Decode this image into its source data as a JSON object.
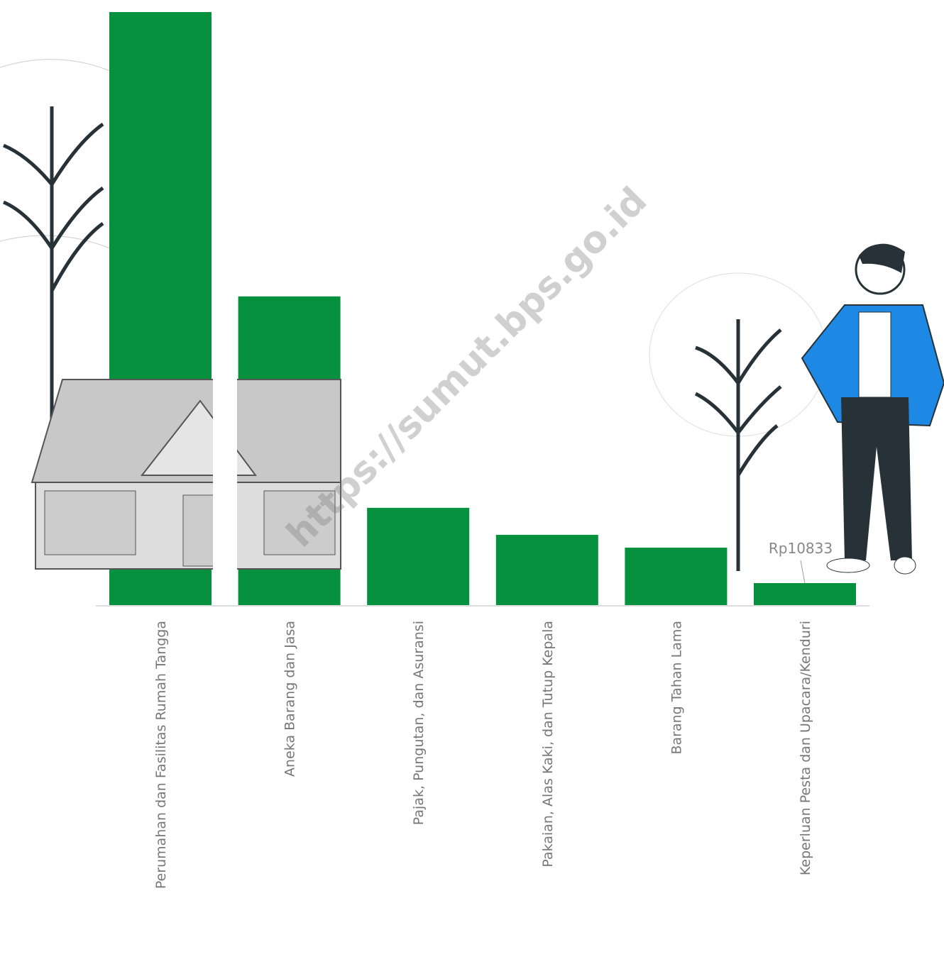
{
  "chart_data": {
    "type": "bar",
    "categories": [
      "Perumahan dan Fasilitas Rumah Tangga",
      "Aneka Barang dan Jasa",
      "Pajak, Pungutan, dan Asuransi",
      "Pakaian, Alas Kaki, dan Tutup Kepala",
      "Barang Tahan Lama",
      "Keperluan Pesta dan Upacara/Kenduri"
    ],
    "values": [
      292000,
      152000,
      47900,
      34600,
      28300,
      10833
    ],
    "value_labels": [
      null,
      null,
      null,
      null,
      null,
      "Rp10833"
    ],
    "color": "#05913d",
    "watermark": "https://sumut.bps.go.id"
  }
}
